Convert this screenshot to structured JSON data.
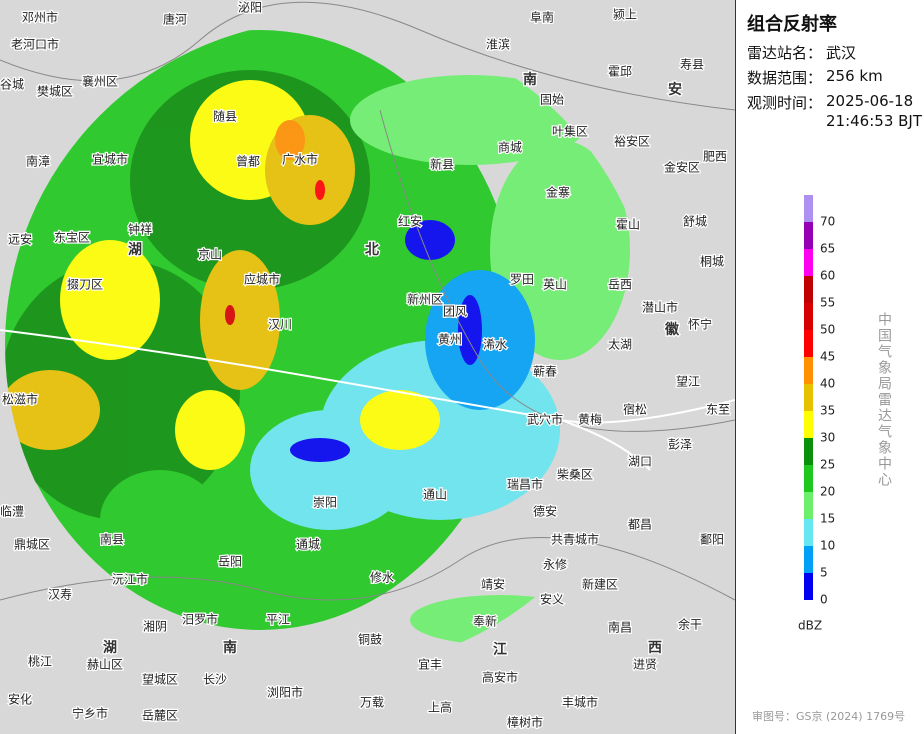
{
  "panel": {
    "title": "组合反射率",
    "station_label": "雷达站名：",
    "station": "武汉",
    "range_label": "数据范围：",
    "range": "256 km",
    "time_label": "观测时间：",
    "date": "2025-06-18",
    "time": "21:46:53 BJT"
  },
  "legend": {
    "unit": "dBZ",
    "entries": [
      {
        "value": 0,
        "color": "#0000f0"
      },
      {
        "value": 5,
        "color": "#00a0f6"
      },
      {
        "value": 10,
        "color": "#66e6f0"
      },
      {
        "value": 15,
        "color": "#6cf06c"
      },
      {
        "value": 20,
        "color": "#1ec81e"
      },
      {
        "value": 25,
        "color": "#0a900a"
      },
      {
        "value": 30,
        "color": "#ffff00"
      },
      {
        "value": 35,
        "color": "#e7c000"
      },
      {
        "value": 40,
        "color": "#ff9000"
      },
      {
        "value": 45,
        "color": "#ff0000"
      },
      {
        "value": 50,
        "color": "#d60000"
      },
      {
        "value": 55,
        "color": "#c00000"
      },
      {
        "value": 60,
        "color": "#ff00f0"
      },
      {
        "value": 65,
        "color": "#9600b4"
      },
      {
        "value": 70,
        "color": "#ad90f0"
      }
    ]
  },
  "credit": "中国气象局雷达气象中心",
  "approval": "审图号：GS京 (2024) 1769号",
  "map": {
    "labels": [
      "邓州市",
      "唐河",
      "泌阳",
      "阜南",
      "颍上",
      "老河口市",
      "襄州区",
      "樊城区",
      "谷城",
      "随县",
      "广水市",
      "曾都",
      "宜城市",
      "南漳",
      "钟祥",
      "京山",
      "应城市",
      "汉川",
      "新州区",
      "团风",
      "黄州",
      "浠水",
      "蕲春",
      "武穴市",
      "黄梅",
      "宿松",
      "望江",
      "东至",
      "彭泽",
      "湖口",
      "瑞昌市",
      "柴桑区",
      "德安",
      "共青城市",
      "永修",
      "都昌",
      "鄱阳",
      "新建区",
      "南昌",
      "进贤",
      "余干",
      "安义",
      "奉新",
      "靖安",
      "宜丰",
      "高安市",
      "丰城市",
      "樟树市",
      "上高",
      "万载",
      "浏阳市",
      "铜鼓",
      "修水",
      "平江",
      "通城",
      "崇阳",
      "通山",
      "岳阳",
      "汨罗市",
      "湘阴",
      "长沙",
      "望城区",
      "赫山区",
      "桃江",
      "安化",
      "宁乡市",
      "岳麓区",
      "沅江市",
      "南县",
      "汉寿",
      "鼎城区",
      "临澧",
      "松滋市",
      "远安",
      "东宝区",
      "掇刀区",
      "罗田",
      "英山",
      "岳西",
      "潜山市",
      "怀宁",
      "太湖",
      "霍山",
      "舒城",
      "桐城",
      "金安区",
      "肥西",
      "裕安区",
      "叶集区",
      "霍邱",
      "寿县",
      "固始",
      "商城",
      "金寨",
      "新县",
      "红安",
      "淮滨",
      "南",
      "安",
      "北",
      "湖",
      "湖",
      "南",
      "江",
      "西",
      "徽"
    ]
  }
}
